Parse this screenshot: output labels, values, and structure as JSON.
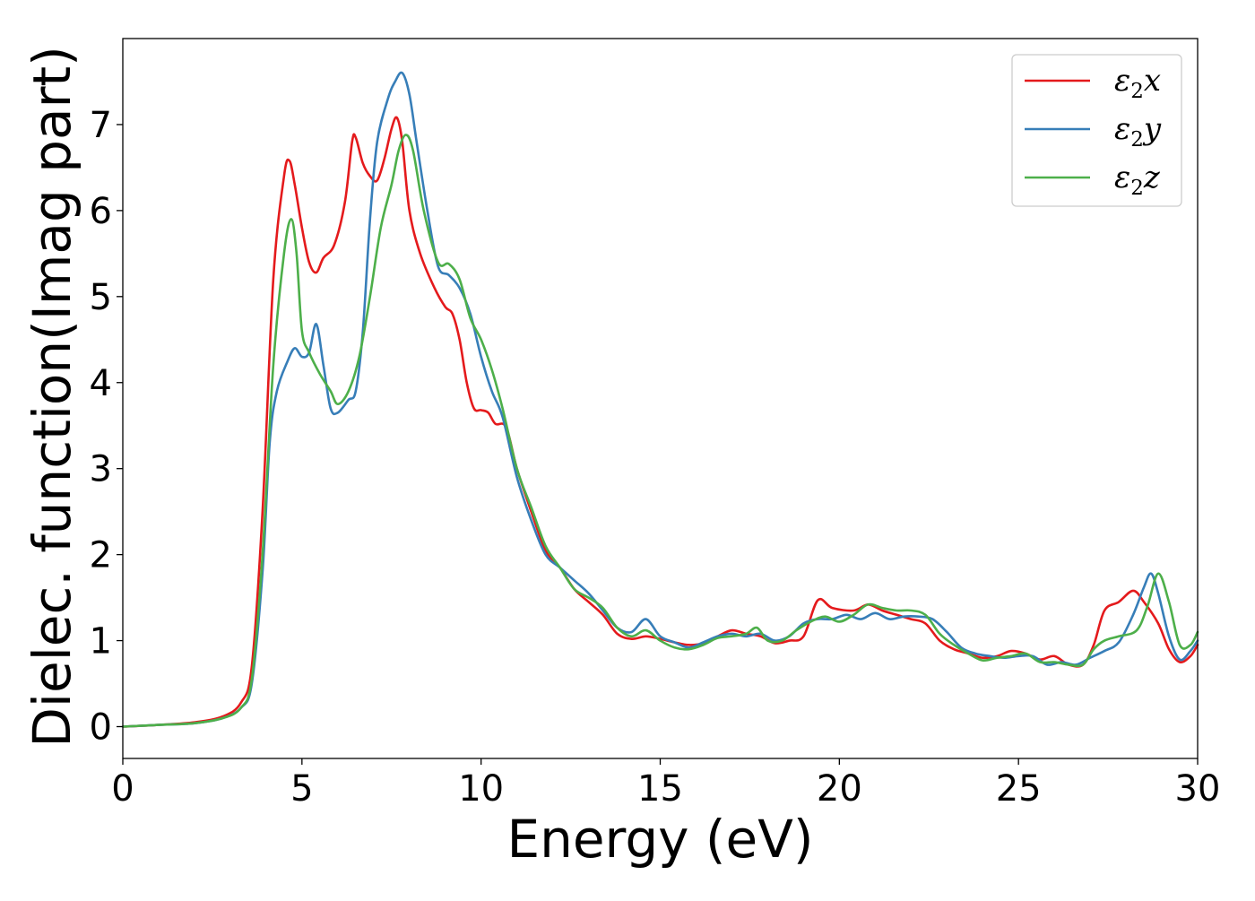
{
  "chart_data": {
    "type": "line",
    "title": "",
    "xlabel": "Energy (eV)",
    "ylabel": "Dielec. function(Imag part)",
    "xlim": [
      0,
      30
    ],
    "ylim": [
      -0.37,
      8.0
    ],
    "xticks": [
      0,
      5,
      10,
      15,
      20,
      25,
      30
    ],
    "yticks": [
      0,
      1,
      2,
      3,
      4,
      5,
      6,
      7
    ],
    "grid": false,
    "legend_position": "top-right",
    "series": [
      {
        "name": "ε2x",
        "legend_base": "ε",
        "legend_sub": "2",
        "legend_tail": "x",
        "color": "#e41a1c",
        "points": [
          [
            0,
            0
          ],
          [
            1,
            0.02
          ],
          [
            2,
            0.05
          ],
          [
            2.8,
            0.12
          ],
          [
            3.3,
            0.28
          ],
          [
            3.6,
            0.7
          ],
          [
            3.9,
            2.5
          ],
          [
            4.2,
            5.2
          ],
          [
            4.5,
            6.4
          ],
          [
            4.65,
            6.58
          ],
          [
            4.8,
            6.3
          ],
          [
            5.0,
            5.8
          ],
          [
            5.2,
            5.4
          ],
          [
            5.4,
            5.28
          ],
          [
            5.6,
            5.45
          ],
          [
            5.9,
            5.6
          ],
          [
            6.2,
            6.1
          ],
          [
            6.4,
            6.8
          ],
          [
            6.5,
            6.85
          ],
          [
            6.7,
            6.55
          ],
          [
            6.9,
            6.4
          ],
          [
            7.1,
            6.35
          ],
          [
            7.3,
            6.6
          ],
          [
            7.5,
            6.95
          ],
          [
            7.65,
            7.08
          ],
          [
            7.8,
            6.8
          ],
          [
            8.0,
            6.0
          ],
          [
            8.3,
            5.5
          ],
          [
            8.7,
            5.1
          ],
          [
            9.0,
            4.88
          ],
          [
            9.2,
            4.8
          ],
          [
            9.4,
            4.5
          ],
          [
            9.6,
            4.0
          ],
          [
            9.8,
            3.7
          ],
          [
            10.0,
            3.68
          ],
          [
            10.2,
            3.65
          ],
          [
            10.4,
            3.52
          ],
          [
            10.7,
            3.48
          ],
          [
            11.0,
            3.0
          ],
          [
            11.4,
            2.5
          ],
          [
            11.8,
            2.05
          ],
          [
            12.2,
            1.85
          ],
          [
            12.6,
            1.6
          ],
          [
            13.0,
            1.45
          ],
          [
            13.4,
            1.3
          ],
          [
            13.8,
            1.08
          ],
          [
            14.2,
            1.02
          ],
          [
            14.6,
            1.05
          ],
          [
            15.0,
            1.02
          ],
          [
            15.4,
            0.98
          ],
          [
            15.8,
            0.95
          ],
          [
            16.2,
            0.97
          ],
          [
            16.6,
            1.05
          ],
          [
            17.0,
            1.12
          ],
          [
            17.4,
            1.08
          ],
          [
            17.8,
            1.05
          ],
          [
            18.2,
            0.97
          ],
          [
            18.6,
            1.0
          ],
          [
            19.0,
            1.05
          ],
          [
            19.4,
            1.47
          ],
          [
            19.8,
            1.38
          ],
          [
            20.4,
            1.35
          ],
          [
            20.8,
            1.42
          ],
          [
            21.2,
            1.35
          ],
          [
            21.6,
            1.3
          ],
          [
            22.0,
            1.25
          ],
          [
            22.4,
            1.2
          ],
          [
            22.8,
            1.0
          ],
          [
            23.2,
            0.9
          ],
          [
            23.6,
            0.85
          ],
          [
            24.0,
            0.8
          ],
          [
            24.4,
            0.82
          ],
          [
            24.8,
            0.88
          ],
          [
            25.2,
            0.85
          ],
          [
            25.6,
            0.78
          ],
          [
            26.0,
            0.82
          ],
          [
            26.4,
            0.72
          ],
          [
            26.8,
            0.72
          ],
          [
            27.1,
            0.95
          ],
          [
            27.4,
            1.35
          ],
          [
            27.8,
            1.45
          ],
          [
            28.2,
            1.58
          ],
          [
            28.5,
            1.45
          ],
          [
            28.9,
            1.2
          ],
          [
            29.2,
            0.9
          ],
          [
            29.5,
            0.75
          ],
          [
            29.8,
            0.82
          ],
          [
            30,
            0.95
          ]
        ]
      },
      {
        "name": "ε2y",
        "legend_base": "ε",
        "legend_sub": "2",
        "legend_tail": "y",
        "color": "#377eb8",
        "points": [
          [
            0,
            0
          ],
          [
            1,
            0.02
          ],
          [
            2,
            0.04
          ],
          [
            2.8,
            0.1
          ],
          [
            3.3,
            0.22
          ],
          [
            3.6,
            0.5
          ],
          [
            3.9,
            1.8
          ],
          [
            4.1,
            3.3
          ],
          [
            4.3,
            3.9
          ],
          [
            4.6,
            4.25
          ],
          [
            4.8,
            4.4
          ],
          [
            5.0,
            4.3
          ],
          [
            5.2,
            4.35
          ],
          [
            5.4,
            4.68
          ],
          [
            5.6,
            4.2
          ],
          [
            5.8,
            3.7
          ],
          [
            6.0,
            3.65
          ],
          [
            6.3,
            3.8
          ],
          [
            6.5,
            3.9
          ],
          [
            6.7,
            4.6
          ],
          [
            6.9,
            5.9
          ],
          [
            7.1,
            6.8
          ],
          [
            7.4,
            7.3
          ],
          [
            7.6,
            7.5
          ],
          [
            7.8,
            7.6
          ],
          [
            8.0,
            7.35
          ],
          [
            8.2,
            6.8
          ],
          [
            8.5,
            6.0
          ],
          [
            8.8,
            5.35
          ],
          [
            9.1,
            5.25
          ],
          [
            9.4,
            5.1
          ],
          [
            9.7,
            4.8
          ],
          [
            10.0,
            4.3
          ],
          [
            10.3,
            3.9
          ],
          [
            10.6,
            3.6
          ],
          [
            11.0,
            2.9
          ],
          [
            11.4,
            2.4
          ],
          [
            11.8,
            2.0
          ],
          [
            12.2,
            1.85
          ],
          [
            12.6,
            1.7
          ],
          [
            13.0,
            1.55
          ],
          [
            13.4,
            1.35
          ],
          [
            13.8,
            1.15
          ],
          [
            14.2,
            1.1
          ],
          [
            14.6,
            1.25
          ],
          [
            15.0,
            1.05
          ],
          [
            15.4,
            0.98
          ],
          [
            15.8,
            0.92
          ],
          [
            16.2,
            0.98
          ],
          [
            16.6,
            1.05
          ],
          [
            17.0,
            1.08
          ],
          [
            17.4,
            1.05
          ],
          [
            17.8,
            1.08
          ],
          [
            18.2,
            1.0
          ],
          [
            18.6,
            1.05
          ],
          [
            19.0,
            1.2
          ],
          [
            19.4,
            1.25
          ],
          [
            19.8,
            1.25
          ],
          [
            20.2,
            1.3
          ],
          [
            20.6,
            1.25
          ],
          [
            21.0,
            1.32
          ],
          [
            21.4,
            1.25
          ],
          [
            21.8,
            1.28
          ],
          [
            22.2,
            1.28
          ],
          [
            22.6,
            1.25
          ],
          [
            23.0,
            1.1
          ],
          [
            23.4,
            0.92
          ],
          [
            23.8,
            0.85
          ],
          [
            24.2,
            0.82
          ],
          [
            24.6,
            0.8
          ],
          [
            25.0,
            0.82
          ],
          [
            25.4,
            0.82
          ],
          [
            25.8,
            0.72
          ],
          [
            26.2,
            0.75
          ],
          [
            26.6,
            0.72
          ],
          [
            27.0,
            0.8
          ],
          [
            27.4,
            0.88
          ],
          [
            27.8,
            0.98
          ],
          [
            28.2,
            1.3
          ],
          [
            28.5,
            1.62
          ],
          [
            28.7,
            1.78
          ],
          [
            28.9,
            1.55
          ],
          [
            29.2,
            1.05
          ],
          [
            29.5,
            0.78
          ],
          [
            29.8,
            0.88
          ],
          [
            30,
            1.0
          ]
        ]
      },
      {
        "name": "ε2z",
        "legend_base": "ε",
        "legend_sub": "2",
        "legend_tail": "z",
        "color": "#4daf4a",
        "points": [
          [
            0,
            0
          ],
          [
            1,
            0.02
          ],
          [
            2,
            0.04
          ],
          [
            2.8,
            0.1
          ],
          [
            3.3,
            0.22
          ],
          [
            3.6,
            0.55
          ],
          [
            3.9,
            2.0
          ],
          [
            4.2,
            4.2
          ],
          [
            4.5,
            5.5
          ],
          [
            4.7,
            5.9
          ],
          [
            4.85,
            5.5
          ],
          [
            5.0,
            4.6
          ],
          [
            5.2,
            4.35
          ],
          [
            5.5,
            4.1
          ],
          [
            5.8,
            3.9
          ],
          [
            6.0,
            3.75
          ],
          [
            6.3,
            3.9
          ],
          [
            6.6,
            4.3
          ],
          [
            6.9,
            5.0
          ],
          [
            7.2,
            5.8
          ],
          [
            7.5,
            6.3
          ],
          [
            7.7,
            6.7
          ],
          [
            7.9,
            6.88
          ],
          [
            8.1,
            6.7
          ],
          [
            8.4,
            6.0
          ],
          [
            8.8,
            5.4
          ],
          [
            9.1,
            5.38
          ],
          [
            9.4,
            5.2
          ],
          [
            9.7,
            4.75
          ],
          [
            10.0,
            4.5
          ],
          [
            10.3,
            4.15
          ],
          [
            10.6,
            3.7
          ],
          [
            11.0,
            3.0
          ],
          [
            11.4,
            2.55
          ],
          [
            11.8,
            2.1
          ],
          [
            12.2,
            1.85
          ],
          [
            12.6,
            1.6
          ],
          [
            13.0,
            1.5
          ],
          [
            13.4,
            1.38
          ],
          [
            13.8,
            1.15
          ],
          [
            14.2,
            1.05
          ],
          [
            14.6,
            1.12
          ],
          [
            15.0,
            1.0
          ],
          [
            15.4,
            0.92
          ],
          [
            15.8,
            0.9
          ],
          [
            16.2,
            0.95
          ],
          [
            16.6,
            1.03
          ],
          [
            17.0,
            1.05
          ],
          [
            17.4,
            1.08
          ],
          [
            17.7,
            1.15
          ],
          [
            18.0,
            1.0
          ],
          [
            18.4,
            1.0
          ],
          [
            18.8,
            1.12
          ],
          [
            19.2,
            1.22
          ],
          [
            19.6,
            1.28
          ],
          [
            20.0,
            1.22
          ],
          [
            20.4,
            1.3
          ],
          [
            20.8,
            1.42
          ],
          [
            21.2,
            1.38
          ],
          [
            21.6,
            1.35
          ],
          [
            22.0,
            1.35
          ],
          [
            22.4,
            1.3
          ],
          [
            22.8,
            1.08
          ],
          [
            23.2,
            0.95
          ],
          [
            23.6,
            0.85
          ],
          [
            24.0,
            0.77
          ],
          [
            24.4,
            0.8
          ],
          [
            24.8,
            0.82
          ],
          [
            25.2,
            0.85
          ],
          [
            25.6,
            0.75
          ],
          [
            26.0,
            0.75
          ],
          [
            26.4,
            0.72
          ],
          [
            26.8,
            0.72
          ],
          [
            27.1,
            0.9
          ],
          [
            27.4,
            1.0
          ],
          [
            27.8,
            1.05
          ],
          [
            28.3,
            1.12
          ],
          [
            28.6,
            1.4
          ],
          [
            28.9,
            1.78
          ],
          [
            29.2,
            1.45
          ],
          [
            29.5,
            0.95
          ],
          [
            29.8,
            0.95
          ],
          [
            30,
            1.1
          ]
        ]
      }
    ]
  }
}
